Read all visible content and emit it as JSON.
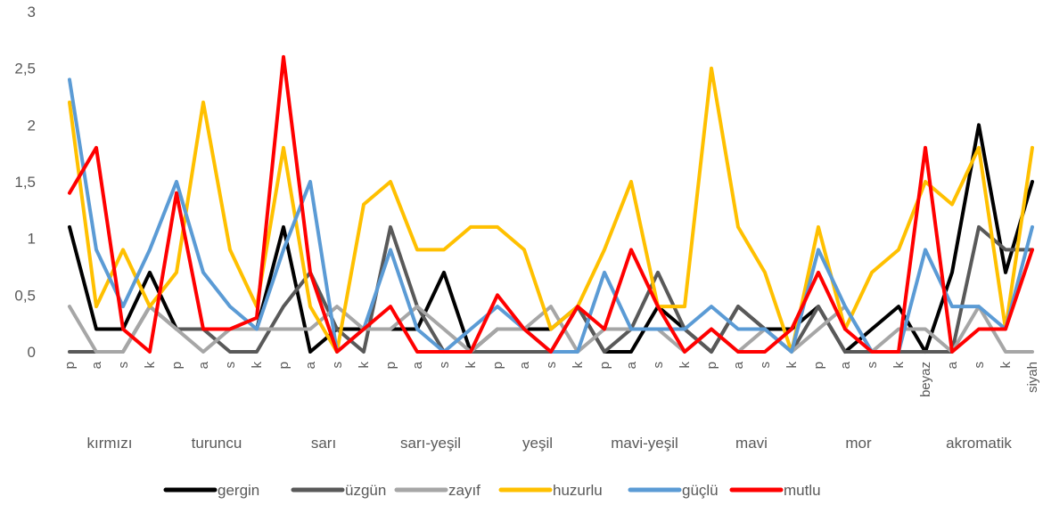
{
  "chart_data": {
    "type": "line",
    "ylim": [
      0,
      3
    ],
    "yticks": [
      "0",
      "0,5",
      "1",
      "1,5",
      "2",
      "2,5",
      "3"
    ],
    "ytick_values": [
      0,
      0.5,
      1,
      1.5,
      2,
      2.5,
      3
    ],
    "grid": false,
    "legend_position": "bottom",
    "categories": [
      "p",
      "a",
      "s",
      "k",
      "p",
      "a",
      "s",
      "k",
      "p",
      "a",
      "s",
      "k",
      "p",
      "a",
      "s",
      "k",
      "p",
      "a",
      "s",
      "k",
      "p",
      "a",
      "s",
      "k",
      "p",
      "a",
      "s",
      "k",
      "p",
      "a",
      "s",
      "k",
      "beyaz",
      "a",
      "s",
      "k",
      "siyah"
    ],
    "groups": [
      {
        "label": "kırmızı",
        "start": 0,
        "end": 3
      },
      {
        "label": "turuncu",
        "start": 4,
        "end": 7
      },
      {
        "label": "sarı",
        "start": 8,
        "end": 11
      },
      {
        "label": "sarı-yeşil",
        "start": 12,
        "end": 15
      },
      {
        "label": "yeşil",
        "start": 16,
        "end": 19
      },
      {
        "label": "mavi-yeşil",
        "start": 20,
        "end": 23
      },
      {
        "label": "mavi",
        "start": 24,
        "end": 27
      },
      {
        "label": "mor",
        "start": 28,
        "end": 31
      },
      {
        "label": "akromatik",
        "start": 32,
        "end": 36
      }
    ],
    "series": [
      {
        "name": "gergin",
        "color": "#000000",
        "values": [
          1.1,
          0.2,
          0.2,
          0.7,
          0.2,
          0.2,
          0.2,
          0.2,
          1.1,
          0,
          0.2,
          0.2,
          0.2,
          0.2,
          0.7,
          0,
          0.2,
          0.2,
          0.2,
          0.4,
          0,
          0,
          0.4,
          0.2,
          0,
          0.4,
          0.2,
          0.2,
          0.4,
          0,
          0.2,
          0.4,
          0,
          0.7,
          2,
          0.7,
          1.5
        ]
      },
      {
        "name": "üzgün",
        "color": "#595959",
        "values": [
          0,
          0,
          0,
          0.4,
          0.2,
          0.2,
          0,
          0,
          0.4,
          0.7,
          0.2,
          0,
          1.1,
          0.4,
          0,
          0,
          0,
          0,
          0,
          0.4,
          0,
          0.2,
          0.7,
          0.2,
          0,
          0.4,
          0.2,
          0,
          0.4,
          0,
          0,
          0,
          0,
          0,
          1.1,
          0.9,
          0.9
        ]
      },
      {
        "name": "zayıf",
        "color": "#a6a6a6",
        "values": [
          0.4,
          0,
          0,
          0.4,
          0.2,
          0,
          0.2,
          0.2,
          0.2,
          0.2,
          0.4,
          0.2,
          0.2,
          0.4,
          0.2,
          0,
          0.2,
          0.2,
          0.4,
          0,
          0.2,
          0.2,
          0.2,
          0,
          0.2,
          0,
          0.2,
          0,
          0.2,
          0.4,
          0,
          0.2,
          0.2,
          0,
          0.4,
          0,
          0
        ]
      },
      {
        "name": "huzurlu",
        "color": "#ffc000",
        "values": [
          2.2,
          0.4,
          0.9,
          0.4,
          0.7,
          2.2,
          0.9,
          0.4,
          1.8,
          0.4,
          0,
          1.3,
          1.5,
          0.9,
          0.9,
          1.1,
          1.1,
          0.9,
          0.2,
          0.4,
          0.9,
          1.5,
          0.4,
          0.4,
          2.5,
          1.1,
          0.7,
          0,
          1.1,
          0.2,
          0.7,
          0.9,
          1.5,
          1.3,
          1.8,
          0.2,
          1.8
        ]
      },
      {
        "name": "güçlü",
        "color": "#5b9bd5",
        "values": [
          2.4,
          0.9,
          0.4,
          0.9,
          1.5,
          0.7,
          0.4,
          0.2,
          0.9,
          1.5,
          0,
          0.2,
          0.9,
          0.2,
          0,
          0.2,
          0.4,
          0.2,
          0,
          0,
          0.7,
          0.2,
          0.2,
          0.2,
          0.4,
          0.2,
          0.2,
          0,
          0.9,
          0.4,
          0,
          0,
          0.9,
          0.4,
          0.4,
          0.2,
          1.1
        ]
      },
      {
        "name": "mutlu",
        "color": "#ff0000",
        "values": [
          1.4,
          1.8,
          0.2,
          0,
          1.4,
          0.2,
          0.2,
          0.3,
          2.6,
          0.7,
          0,
          0.2,
          0.4,
          0,
          0,
          0,
          0.5,
          0.2,
          0,
          0.4,
          0.2,
          0.9,
          0.4,
          0,
          0.2,
          0,
          0,
          0.2,
          0.7,
          0.2,
          0,
          0,
          1.8,
          0,
          0.2,
          0.2,
          0.9
        ]
      }
    ]
  }
}
